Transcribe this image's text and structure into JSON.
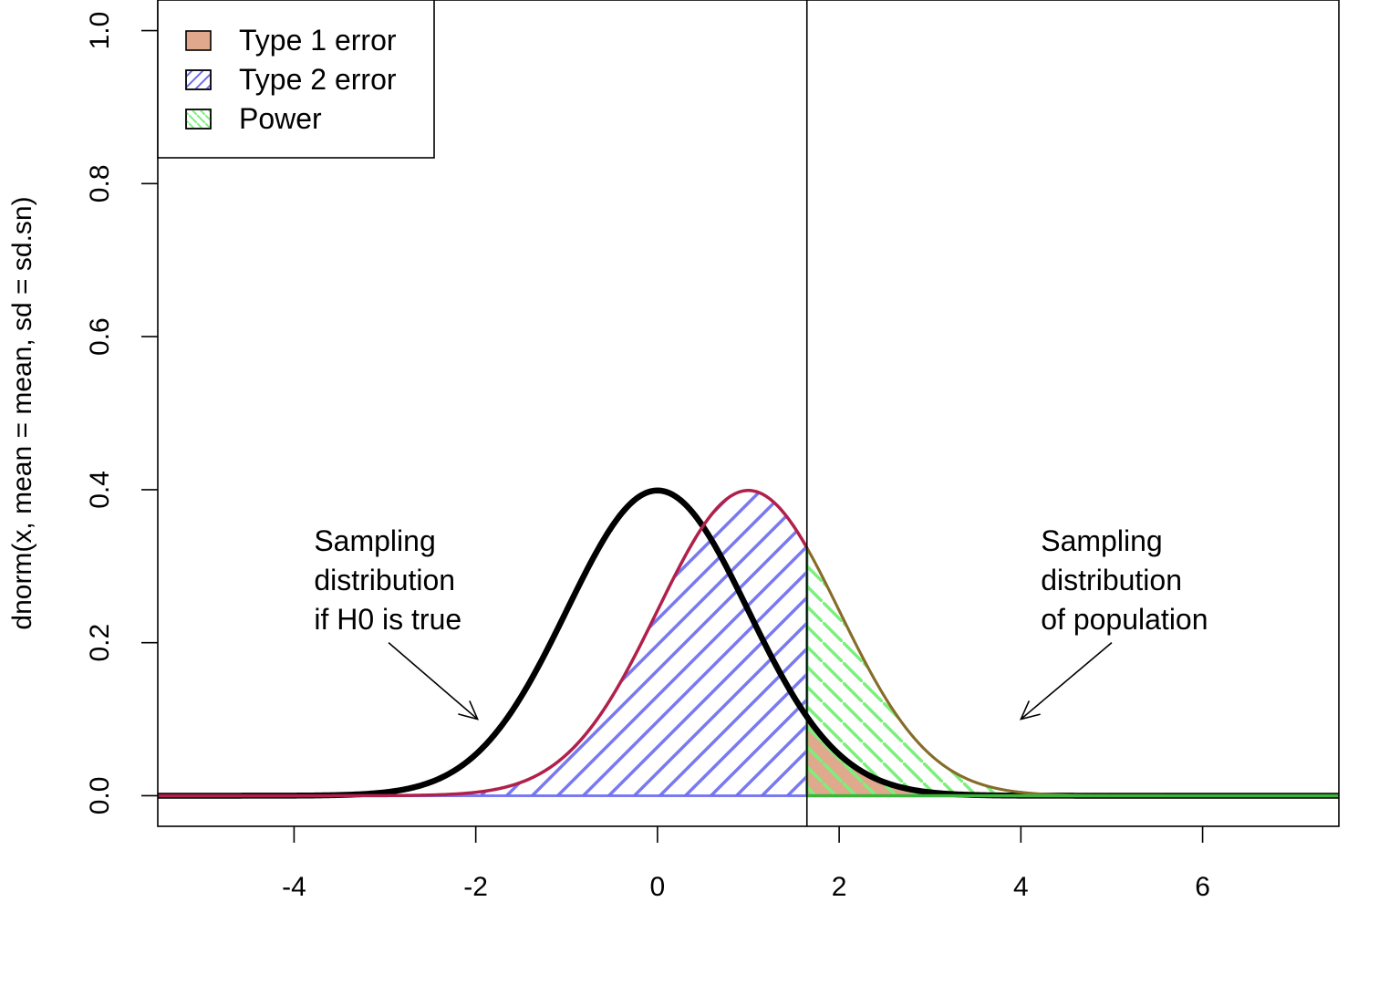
{
  "chart_data": {
    "type": "area",
    "title": "",
    "xlabel": "",
    "ylabel": "dnorm(x, mean = mean, sd = sd.sn)",
    "xlim": [
      -5.5,
      7.5
    ],
    "ylim": [
      -0.04,
      1.04
    ],
    "x_ticks": [
      -4,
      -2,
      0,
      2,
      4,
      6
    ],
    "x_tick_labels": [
      "-4",
      "-2",
      "0",
      "2",
      "4",
      "6"
    ],
    "y_ticks": [
      0.0,
      0.2,
      0.4,
      0.6,
      0.8,
      1.0
    ],
    "y_tick_labels": [
      "0.0",
      "0.2",
      "0.4",
      "0.6",
      "0.8",
      "1.0"
    ],
    "grid": false,
    "critical_value": 1.645,
    "legend": {
      "position": "top-left",
      "entries": [
        {
          "label": "Type 1 error",
          "fill": "#e0a88c",
          "pattern": "solid"
        },
        {
          "label": "Type 2 error",
          "fill": "#6b6bf0",
          "pattern": "hatch-45"
        },
        {
          "label": "Power",
          "fill": "#7cf07c",
          "pattern": "hatch-135"
        }
      ]
    },
    "series": [
      {
        "name": "H0",
        "distribution": "normal",
        "mean": 0,
        "sd": 1,
        "color": "#000000"
      },
      {
        "name": "population",
        "distribution": "normal",
        "mean": 1,
        "sd": 1,
        "color": "#b0204a"
      }
    ],
    "annotations": [
      {
        "lines": [
          "Sampling",
          "distribution",
          "if H0 is true"
        ],
        "text_at": [
          -3.78,
          0.32
        ],
        "arrow_from": [
          -2.96,
          0.2
        ],
        "arrow_to": [
          -1.98,
          0.1
        ]
      },
      {
        "lines": [
          "Sampling",
          "distribution",
          "of population"
        ],
        "text_at": [
          4.22,
          0.32
        ],
        "arrow_from": [
          5.0,
          0.2
        ],
        "arrow_to": [
          4.0,
          0.1
        ]
      }
    ],
    "colors": {
      "type1": "#e0a88c",
      "type2": "#6b6bf0",
      "power": "#7cf07c",
      "power_border": "#3cb43c",
      "h0_curve": "#000000",
      "pop_curve": "#b0204a",
      "pop_upper": "#8a6a2a"
    }
  }
}
